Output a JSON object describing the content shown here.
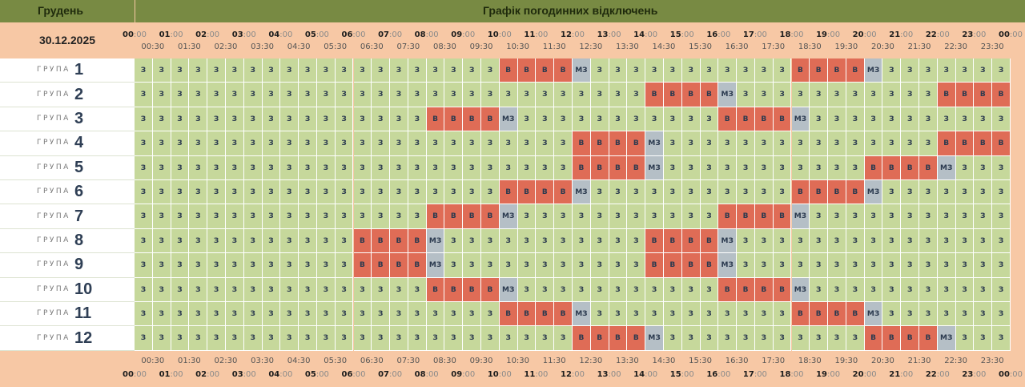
{
  "header": {
    "month": "Грудень",
    "title": "Графік погодинних відключень",
    "date": "30.12.2025"
  },
  "hours": [
    {
      "h": "00",
      "m": ":00"
    },
    {
      "h": "01",
      "m": ":00"
    },
    {
      "h": "02",
      "m": ":00"
    },
    {
      "h": "03",
      "m": ":00"
    },
    {
      "h": "04",
      "m": ":00"
    },
    {
      "h": "05",
      "m": ":00"
    },
    {
      "h": "06",
      "m": ":00"
    },
    {
      "h": "07",
      "m": ":00"
    },
    {
      "h": "08",
      "m": ":00"
    },
    {
      "h": "09",
      "m": ":00"
    },
    {
      "h": "10",
      "m": ":00"
    },
    {
      "h": "11",
      "m": ":00"
    },
    {
      "h": "12",
      "m": ":00"
    },
    {
      "h": "13",
      "m": ":00"
    },
    {
      "h": "14",
      "m": ":00"
    },
    {
      "h": "15",
      "m": ":00"
    },
    {
      "h": "16",
      "m": ":00"
    },
    {
      "h": "17",
      "m": ":00"
    },
    {
      "h": "18",
      "m": ":00"
    },
    {
      "h": "19",
      "m": ":00"
    },
    {
      "h": "20",
      "m": ":00"
    },
    {
      "h": "21",
      "m": ":00"
    },
    {
      "h": "22",
      "m": ":00"
    },
    {
      "h": "23",
      "m": ":00"
    },
    {
      "h": "00",
      "m": ":00"
    }
  ],
  "halves": [
    "00:30",
    "01:30",
    "02:30",
    "03:30",
    "04:30",
    "05:30",
    "06:30",
    "07:30",
    "08:30",
    "09:30",
    "10:30",
    "11:30",
    "12:30",
    "13:30",
    "14:30",
    "15:30",
    "16:30",
    "17:30",
    "18:30",
    "19:30",
    "20:30",
    "21:30",
    "22:30",
    "23:30"
  ],
  "rows": [
    {
      "label": "ГРУПА",
      "number": "1",
      "cells": [
        "З",
        "З",
        "З",
        "З",
        "З",
        "З",
        "З",
        "З",
        "З",
        "З",
        "З",
        "З",
        "З",
        "З",
        "З",
        "З",
        "З",
        "З",
        "З",
        "З",
        "В",
        "В",
        "В",
        "В",
        "МЗ",
        "З",
        "З",
        "З",
        "З",
        "З",
        "З",
        "З",
        "З",
        "З",
        "З",
        "З",
        "В",
        "В",
        "В",
        "В",
        "МЗ",
        "З",
        "З",
        "З",
        "З",
        "З",
        "З",
        "З"
      ]
    },
    {
      "label": "ГРУПА",
      "number": "2",
      "cells": [
        "З",
        "З",
        "З",
        "З",
        "З",
        "З",
        "З",
        "З",
        "З",
        "З",
        "З",
        "З",
        "З",
        "З",
        "З",
        "З",
        "З",
        "З",
        "З",
        "З",
        "З",
        "З",
        "З",
        "З",
        "З",
        "З",
        "З",
        "З",
        "В",
        "В",
        "В",
        "В",
        "МЗ",
        "З",
        "З",
        "З",
        "З",
        "З",
        "З",
        "З",
        "З",
        "З",
        "З",
        "З",
        "В",
        "В",
        "В",
        "В"
      ]
    },
    {
      "label": "ГРУПА",
      "number": "3",
      "cells": [
        "З",
        "З",
        "З",
        "З",
        "З",
        "З",
        "З",
        "З",
        "З",
        "З",
        "З",
        "З",
        "З",
        "З",
        "З",
        "З",
        "В",
        "В",
        "В",
        "В",
        "МЗ",
        "З",
        "З",
        "З",
        "З",
        "З",
        "З",
        "З",
        "З",
        "З",
        "З",
        "З",
        "В",
        "В",
        "В",
        "В",
        "МЗ",
        "З",
        "З",
        "З",
        "З",
        "З",
        "З",
        "З",
        "З",
        "З",
        "З",
        "З"
      ]
    },
    {
      "label": "ГРУПА",
      "number": "4",
      "cells": [
        "З",
        "З",
        "З",
        "З",
        "З",
        "З",
        "З",
        "З",
        "З",
        "З",
        "З",
        "З",
        "З",
        "З",
        "З",
        "З",
        "З",
        "З",
        "З",
        "З",
        "З",
        "З",
        "З",
        "З",
        "В",
        "В",
        "В",
        "В",
        "МЗ",
        "З",
        "З",
        "З",
        "З",
        "З",
        "З",
        "З",
        "З",
        "З",
        "З",
        "З",
        "З",
        "З",
        "З",
        "З",
        "В",
        "В",
        "В",
        "В"
      ]
    },
    {
      "label": "ГРУПА",
      "number": "5",
      "cells": [
        "З",
        "З",
        "З",
        "З",
        "З",
        "З",
        "З",
        "З",
        "З",
        "З",
        "З",
        "З",
        "З",
        "З",
        "З",
        "З",
        "З",
        "З",
        "З",
        "З",
        "З",
        "З",
        "З",
        "З",
        "В",
        "В",
        "В",
        "В",
        "МЗ",
        "З",
        "З",
        "З",
        "З",
        "З",
        "З",
        "З",
        "З",
        "З",
        "З",
        "З",
        "В",
        "В",
        "В",
        "В",
        "МЗ",
        "З",
        "З",
        "З"
      ]
    },
    {
      "label": "ГРУПА",
      "number": "6",
      "cells": [
        "З",
        "З",
        "З",
        "З",
        "З",
        "З",
        "З",
        "З",
        "З",
        "З",
        "З",
        "З",
        "З",
        "З",
        "З",
        "З",
        "З",
        "З",
        "З",
        "З",
        "В",
        "В",
        "В",
        "В",
        "МЗ",
        "З",
        "З",
        "З",
        "З",
        "З",
        "З",
        "З",
        "З",
        "З",
        "З",
        "З",
        "В",
        "В",
        "В",
        "В",
        "МЗ",
        "З",
        "З",
        "З",
        "З",
        "З",
        "З",
        "З"
      ]
    },
    {
      "label": "ГРУПА",
      "number": "7",
      "cells": [
        "З",
        "З",
        "З",
        "З",
        "З",
        "З",
        "З",
        "З",
        "З",
        "З",
        "З",
        "З",
        "З",
        "З",
        "З",
        "З",
        "В",
        "В",
        "В",
        "В",
        "МЗ",
        "З",
        "З",
        "З",
        "З",
        "З",
        "З",
        "З",
        "З",
        "З",
        "З",
        "З",
        "В",
        "В",
        "В",
        "В",
        "МЗ",
        "З",
        "З",
        "З",
        "З",
        "З",
        "З",
        "З",
        "З",
        "З",
        "З",
        "З"
      ]
    },
    {
      "label": "ГРУПА",
      "number": "8",
      "cells": [
        "З",
        "З",
        "З",
        "З",
        "З",
        "З",
        "З",
        "З",
        "З",
        "З",
        "З",
        "З",
        "В",
        "В",
        "В",
        "В",
        "МЗ",
        "З",
        "З",
        "З",
        "З",
        "З",
        "З",
        "З",
        "З",
        "З",
        "З",
        "З",
        "В",
        "В",
        "В",
        "В",
        "МЗ",
        "З",
        "З",
        "З",
        "З",
        "З",
        "З",
        "З",
        "З",
        "З",
        "З",
        "З",
        "З",
        "З",
        "З",
        "З"
      ]
    },
    {
      "label": "ГРУПА",
      "number": "9",
      "cells": [
        "З",
        "З",
        "З",
        "З",
        "З",
        "З",
        "З",
        "З",
        "З",
        "З",
        "З",
        "З",
        "В",
        "В",
        "В",
        "В",
        "МЗ",
        "З",
        "З",
        "З",
        "З",
        "З",
        "З",
        "З",
        "З",
        "З",
        "З",
        "З",
        "В",
        "В",
        "В",
        "В",
        "МЗ",
        "З",
        "З",
        "З",
        "З",
        "З",
        "З",
        "З",
        "З",
        "З",
        "З",
        "З",
        "З",
        "З",
        "З",
        "З"
      ]
    },
    {
      "label": "ГРУПА",
      "number": "10",
      "cells": [
        "З",
        "З",
        "З",
        "З",
        "З",
        "З",
        "З",
        "З",
        "З",
        "З",
        "З",
        "З",
        "З",
        "З",
        "З",
        "З",
        "В",
        "В",
        "В",
        "В",
        "МЗ",
        "З",
        "З",
        "З",
        "З",
        "З",
        "З",
        "З",
        "З",
        "З",
        "З",
        "З",
        "В",
        "В",
        "В",
        "В",
        "МЗ",
        "З",
        "З",
        "З",
        "З",
        "З",
        "З",
        "З",
        "З",
        "З",
        "З",
        "З"
      ]
    },
    {
      "label": "ГРУПА",
      "number": "11",
      "cells": [
        "З",
        "З",
        "З",
        "З",
        "З",
        "З",
        "З",
        "З",
        "З",
        "З",
        "З",
        "З",
        "З",
        "З",
        "З",
        "З",
        "З",
        "З",
        "З",
        "З",
        "В",
        "В",
        "В",
        "В",
        "МЗ",
        "З",
        "З",
        "З",
        "З",
        "З",
        "З",
        "З",
        "З",
        "З",
        "З",
        "З",
        "В",
        "В",
        "В",
        "В",
        "МЗ",
        "З",
        "З",
        "З",
        "З",
        "З",
        "З",
        "З"
      ]
    },
    {
      "label": "ГРУПА",
      "number": "12",
      "cells": [
        "З",
        "З",
        "З",
        "З",
        "З",
        "З",
        "З",
        "З",
        "З",
        "З",
        "З",
        "З",
        "З",
        "З",
        "З",
        "З",
        "З",
        "З",
        "З",
        "З",
        "З",
        "З",
        "З",
        "З",
        "В",
        "В",
        "В",
        "В",
        "МЗ",
        "З",
        "З",
        "З",
        "З",
        "З",
        "З",
        "З",
        "З",
        "З",
        "З",
        "З",
        "В",
        "В",
        "В",
        "В",
        "МЗ",
        "З",
        "З",
        "З"
      ]
    }
  ]
}
